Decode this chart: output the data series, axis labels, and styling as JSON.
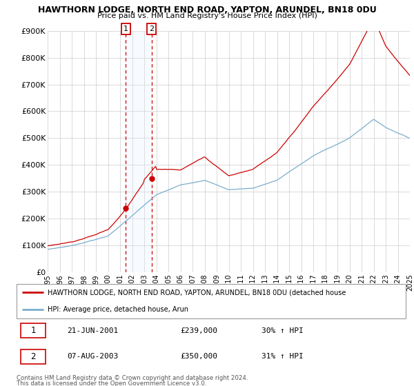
{
  "title": "HAWTHORN LODGE, NORTH END ROAD, YAPTON, ARUNDEL, BN18 0DU",
  "subtitle": "Price paid vs. HM Land Registry's House Price Index (HPI)",
  "ylim": [
    0,
    900000
  ],
  "yticks": [
    0,
    100000,
    200000,
    300000,
    400000,
    500000,
    600000,
    700000,
    800000,
    900000
  ],
  "ytick_labels": [
    "£0",
    "£100K",
    "£200K",
    "£300K",
    "£400K",
    "£500K",
    "£600K",
    "£700K",
    "£800K",
    "£900K"
  ],
  "sale1_year": 2001.47,
  "sale1_price": 239000,
  "sale2_year": 2003.6,
  "sale2_price": 350000,
  "legend_red": "HAWTHORN LODGE, NORTH END ROAD, YAPTON, ARUNDEL, BN18 0DU (detached house",
  "legend_blue": "HPI: Average price, detached house, Arun",
  "footer1": "Contains HM Land Registry data © Crown copyright and database right 2024.",
  "footer2": "This data is licensed under the Open Government Licence v3.0.",
  "red_color": "#cc0000",
  "blue_color": "#7aadcc",
  "vline_color": "#cc0000",
  "shade_color": "#ddeeff",
  "background_color": "#ffffff",
  "grid_color": "#cccccc",
  "table_row1_date": "21-JUN-2001",
  "table_row1_price": "£239,000",
  "table_row1_hpi": "30% ↑ HPI",
  "table_row2_date": "07-AUG-2003",
  "table_row2_price": "£350,000",
  "table_row2_hpi": "31% ↑ HPI"
}
